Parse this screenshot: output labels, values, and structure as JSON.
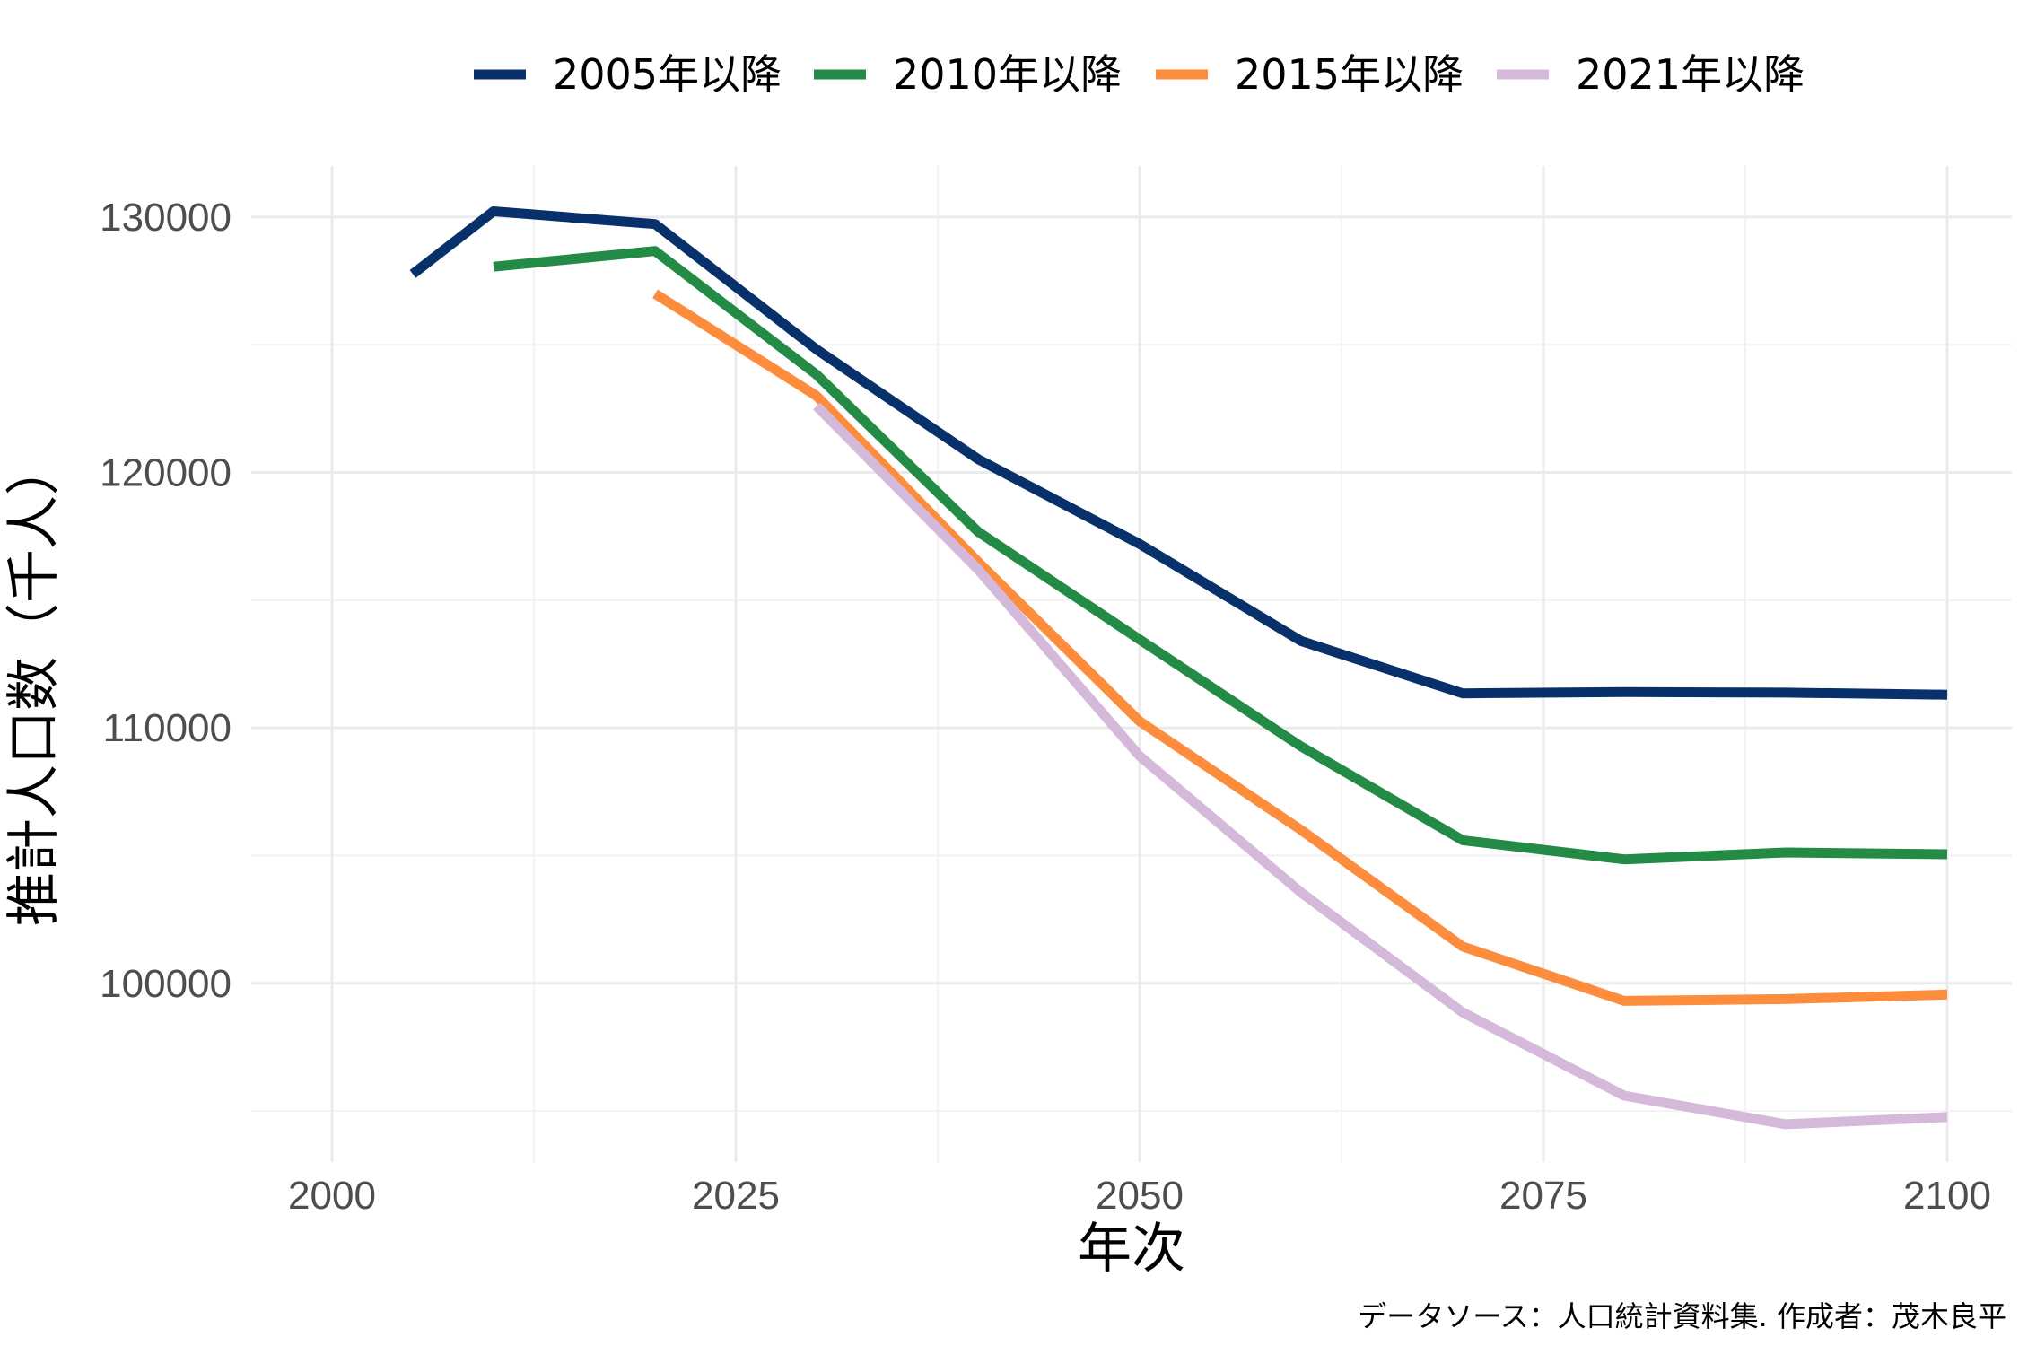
{
  "chart_data": {
    "type": "line",
    "xlabel": "年次",
    "ylabel": "推計人口数（千人）",
    "caption": "データソース：人口統計資料集. 作成者：茂木良平",
    "xlim": [
      1995,
      2104
    ],
    "ylim": [
      93000,
      132000
    ],
    "x_ticks": [
      2000,
      2025,
      2050,
      2075,
      2100
    ],
    "x_minor_ticks": [
      2012.5,
      2037.5,
      2062.5,
      2087.5
    ],
    "y_ticks": [
      100000,
      110000,
      120000,
      130000
    ],
    "y_minor_ticks": [
      95000,
      105000,
      115000,
      125000
    ],
    "grid": true,
    "legend": "top",
    "series": [
      {
        "name": "2005年以降",
        "color": "#08306b",
        "x": [
          2005,
          2010,
          2020,
          2030,
          2040,
          2050,
          2060,
          2070,
          2080,
          2090,
          2100
        ],
        "values": [
          127768,
          130227,
          129727,
          124820,
          120520,
          117200,
          113400,
          111350,
          111400,
          111380,
          111300
        ]
      },
      {
        "name": "2010年以降",
        "color": "#238b45",
        "x": [
          2010,
          2020,
          2030,
          2040,
          2050,
          2060,
          2070,
          2080,
          2090,
          2100
        ],
        "values": [
          128057,
          128673,
          123830,
          117680,
          113460,
          109270,
          105600,
          104850,
          105120,
          105050
        ]
      },
      {
        "name": "2015年以降",
        "color": "#fd8d3c",
        "x": [
          2020,
          2030,
          2040,
          2050,
          2060,
          2070,
          2080,
          2090,
          2100
        ],
        "values": [
          127000,
          123000,
          116500,
          110260,
          106000,
          101440,
          99310,
          99380,
          99560
        ]
      },
      {
        "name": "2021年以降",
        "color": "#d4b9da",
        "x": [
          2030,
          2040,
          2050,
          2060,
          2070,
          2080,
          2090,
          2100
        ],
        "values": [
          122600,
          116200,
          108900,
          103550,
          98860,
          95600,
          94480,
          94760
        ]
      }
    ]
  }
}
